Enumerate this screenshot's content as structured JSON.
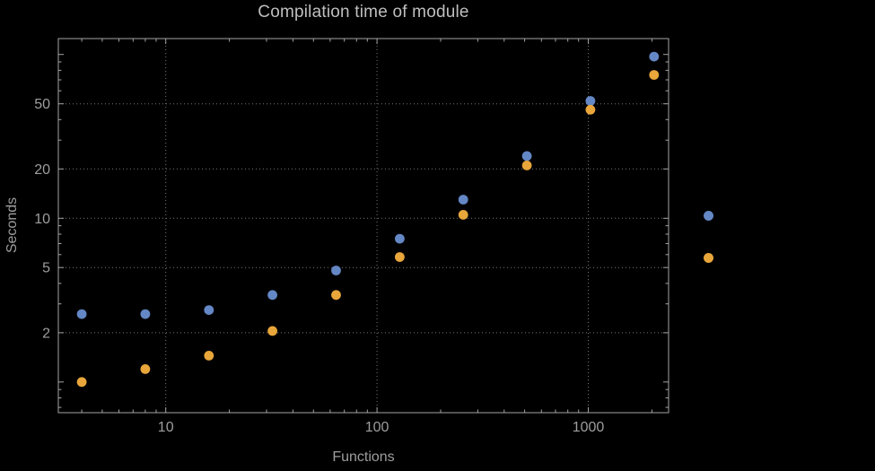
{
  "title": "Compilation time of module",
  "colors": {
    "background": "#000000",
    "title": "#BFBFBF",
    "text": "#9E9E9E",
    "frame": "#A3A3A3",
    "grid": "#777777",
    "series_blue": "#6487C5",
    "series_orange": "#E9A63A"
  },
  "chart_data": {
    "type": "scatter",
    "title": "Compilation time of module",
    "xlabel": "Functions",
    "ylabel": "Seconds",
    "xscale": "log",
    "yscale": "log",
    "grid": true,
    "grid_style": "dotted",
    "legend_position": "right-outside",
    "xlim": [
      3.1,
      2400
    ],
    "ylim": [
      0.65,
      125
    ],
    "xticks": [
      10,
      100,
      1000
    ],
    "yticks": [
      2,
      5,
      10,
      20,
      50
    ],
    "x": [
      4,
      8,
      16,
      32,
      64,
      128,
      256,
      512,
      1024,
      2048
    ],
    "series": [
      {
        "name": "series-1-blue",
        "color": "#6487C5",
        "values": [
          2.6,
          2.6,
          2.75,
          3.4,
          4.8,
          7.5,
          13,
          24,
          52,
          97
        ]
      },
      {
        "name": "series-2-orange",
        "color": "#E9A63A",
        "values": [
          1.0,
          1.2,
          1.45,
          2.05,
          3.4,
          5.8,
          10.5,
          21,
          46,
          75
        ]
      }
    ]
  },
  "legend": {
    "items": [
      {
        "name": "series-1-blue",
        "color": "#6487C5",
        "label": ""
      },
      {
        "name": "series-2-orange",
        "color": "#E9A63A",
        "label": ""
      }
    ]
  }
}
